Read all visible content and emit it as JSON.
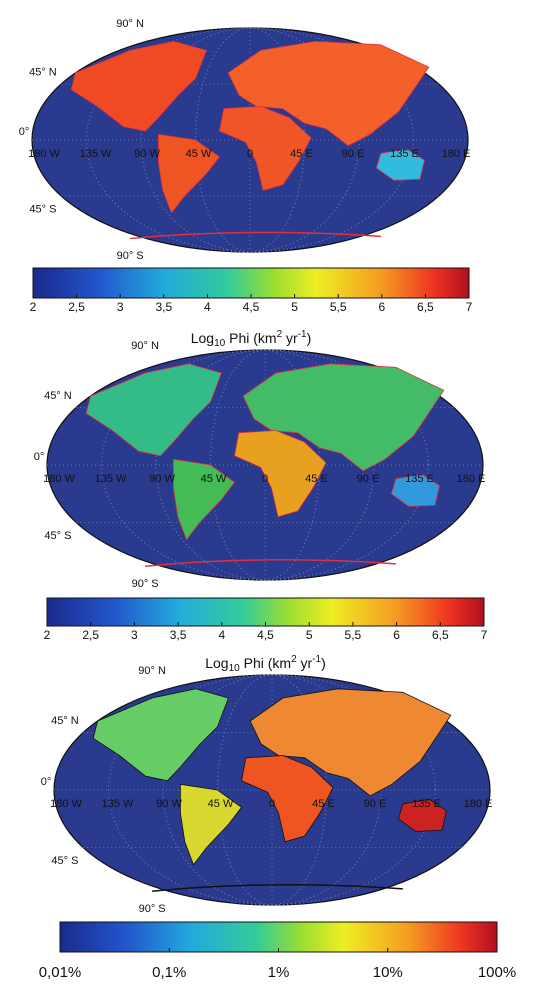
{
  "maps": [
    {
      "lat_labels": [
        "90° N",
        "45° N",
        "0°",
        "45° S",
        "90° S"
      ],
      "lon_labels": [
        "180 W",
        "135 W",
        "90 W",
        "45 W",
        "0",
        "45 E",
        "90 E",
        "135 E",
        "180 E"
      ],
      "colorbar": {
        "tick_labels": [
          "2",
          "2,5",
          "3",
          "3,5",
          "4",
          "4,5",
          "5",
          "5,5",
          "6",
          "6,5",
          "7"
        ],
        "title": {
          "base": "Log",
          "sub": "10",
          "mid": " Phi (km",
          "sup1": "2",
          "unit": " yr",
          "sup2": "-1",
          "end": ")"
        }
      }
    },
    {
      "lat_labels": [
        "90° N",
        "45° N",
        "0°",
        "45° S",
        "90° S"
      ],
      "lon_labels": [
        "180 W",
        "135 W",
        "90 W",
        "45 W",
        "0",
        "45 E",
        "90 E",
        "135 E",
        "180 E"
      ],
      "colorbar": {
        "tick_labels": [
          "2",
          "2,5",
          "3",
          "3,5",
          "4",
          "4,5",
          "5",
          "5,5",
          "6",
          "6,5",
          "7"
        ],
        "title": {
          "base": "Log",
          "sub": "10",
          "mid": " Phi (km",
          "sup1": "2",
          "unit": " yr",
          "sup2": "-1",
          "end": ")"
        }
      }
    },
    {
      "lat_labels": [
        "90° N",
        "45° N",
        "0°",
        "45° S",
        "90° S"
      ],
      "lon_labels": [
        "180 W",
        "135 W",
        "90 W",
        "45 W",
        "0",
        "45 E",
        "90 E",
        "135 E",
        "180 E"
      ],
      "colorbar": {
        "tick_labels": [
          "0,01%",
          "0,1%",
          "1%",
          "10%",
          "100%"
        ]
      }
    }
  ]
}
